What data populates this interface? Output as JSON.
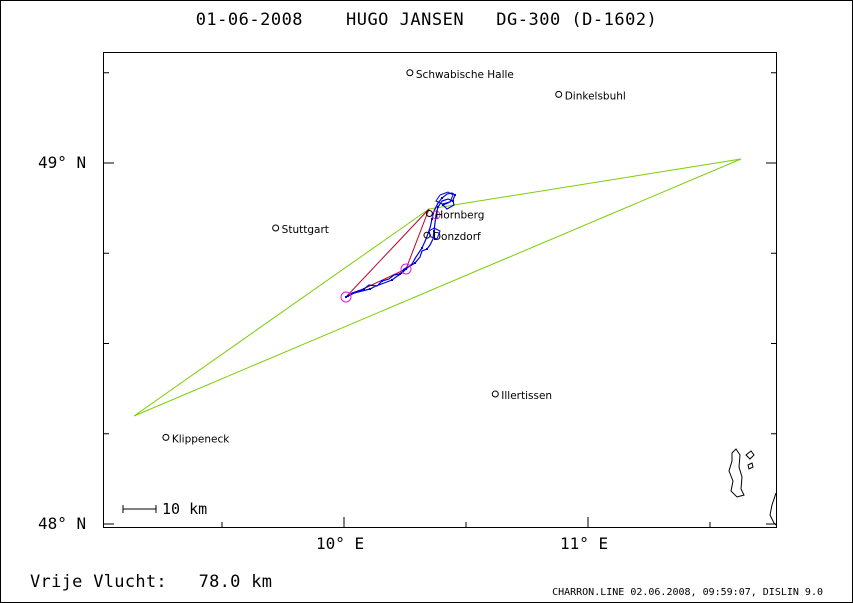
{
  "title": "01-06-2008    HUGO JANSEN   DG-300 (D-1602)",
  "axes": {
    "y_labels": [
      {
        "text": "49° N",
        "lat": 49.0
      },
      {
        "text": "48° N",
        "lat": 48.0
      }
    ],
    "x_labels": [
      {
        "text": "10° E",
        "lon": 10.0
      },
      {
        "text": "11° E",
        "lon": 11.0
      }
    ]
  },
  "places": [
    {
      "name": "Schwabische Halle",
      "lon": 10.27,
      "lat": 49.25
    },
    {
      "name": "Dinkelsbuhl",
      "lon": 10.88,
      "lat": 49.19
    },
    {
      "name": "Stuttgart",
      "lon": 9.72,
      "lat": 48.82
    },
    {
      "name": "Hornberg",
      "lon": 10.35,
      "lat": 48.86
    },
    {
      "name": "Donzdorf",
      "lon": 10.34,
      "lat": 48.8
    },
    {
      "name": "Illertissen",
      "lon": 10.62,
      "lat": 48.36
    },
    {
      "name": "Klippeneck",
      "lon": 9.27,
      "lat": 48.24
    }
  ],
  "scale_label": "10 km",
  "colors": {
    "task": "#7ad000",
    "route": "#c0002a",
    "track": "#0000e0",
    "turnpoint": "#d020d0"
  },
  "footer": {
    "distance_label": "Vrije Vlucht:",
    "distance_value": "78.0 km",
    "credit": "CHARRON.LINE 02.06.2008, 09:59:07, DISLIN 9.0"
  }
}
